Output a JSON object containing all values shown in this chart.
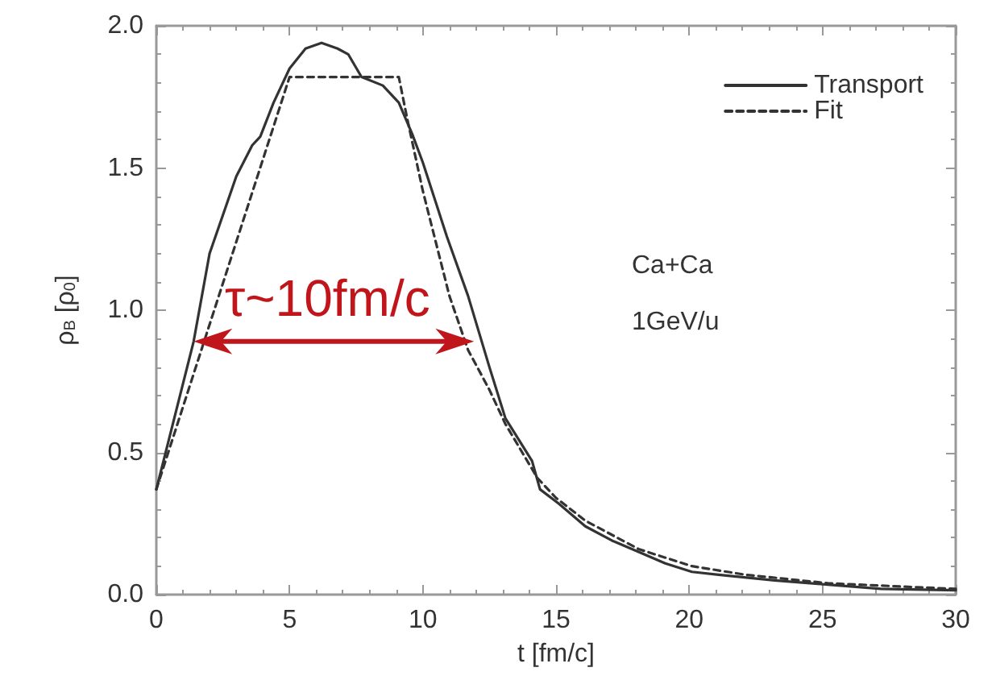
{
  "chart_data": {
    "type": "line",
    "xlabel": "t [fm/c]",
    "ylabel": "ρ$_{B}$ [ρ$_{0}$]",
    "xlim": [
      0,
      30
    ],
    "xticks": [
      0,
      5,
      10,
      15,
      20,
      25,
      30
    ],
    "ylim": [
      0,
      2
    ],
    "yticks": [
      {
        "value": 0,
        "label": "0.0"
      },
      {
        "value": 0.5,
        "label": "0.5"
      },
      {
        "value": 1,
        "label": "1.0"
      },
      {
        "value": 1.5,
        "label": "1.5"
      },
      {
        "value": 2,
        "label": "2.0"
      }
    ],
    "grid": false,
    "legend": "top right",
    "marker": "none",
    "series": [
      {
        "name": "Transport",
        "color": "#333333",
        "line_style": "solid",
        "x": [
          0,
          1.4,
          2.0,
          3.0,
          3.6,
          3.9,
          4.4,
          5.0,
          5.6,
          6.2,
          6.8,
          7.2,
          7.7,
          8.5,
          9.1,
          9.6,
          10.0,
          10.9,
          11.7,
          12.5,
          13.1,
          14.1,
          14.4,
          15.1,
          16.1,
          17.1,
          18.1,
          19.1,
          20.1,
          21.1,
          23.2,
          25.2,
          27.2,
          30
        ],
        "values": [
          0.37,
          0.89,
          1.2,
          1.47,
          1.58,
          1.61,
          1.73,
          1.85,
          1.92,
          1.94,
          1.92,
          1.9,
          1.82,
          1.79,
          1.73,
          1.62,
          1.52,
          1.26,
          1.05,
          0.8,
          0.62,
          0.47,
          0.37,
          0.32,
          0.24,
          0.19,
          0.15,
          0.11,
          0.08,
          0.07,
          0.05,
          0.035,
          0.02,
          0.015
        ]
      },
      {
        "name": "Fit",
        "color": "#333333",
        "line_style": "dashed",
        "x": [
          0,
          5.0,
          9.1,
          9.4,
          10.0,
          11.0,
          11.7,
          12.5,
          13.1,
          14.3,
          15,
          16.1,
          18.1,
          20.1,
          22.1,
          25.2,
          30
        ],
        "values": [
          0.37,
          1.82,
          1.82,
          1.68,
          1.42,
          1.05,
          0.86,
          0.72,
          0.6,
          0.41,
          0.34,
          0.26,
          0.16,
          0.1,
          0.07,
          0.04,
          0.02
        ]
      }
    ],
    "annotations": [
      {
        "text": "τ~10fm/c",
        "x": 1.4,
        "y": 0.89
      },
      "Ca+Ca",
      "1GeV/u"
    ]
  }
}
